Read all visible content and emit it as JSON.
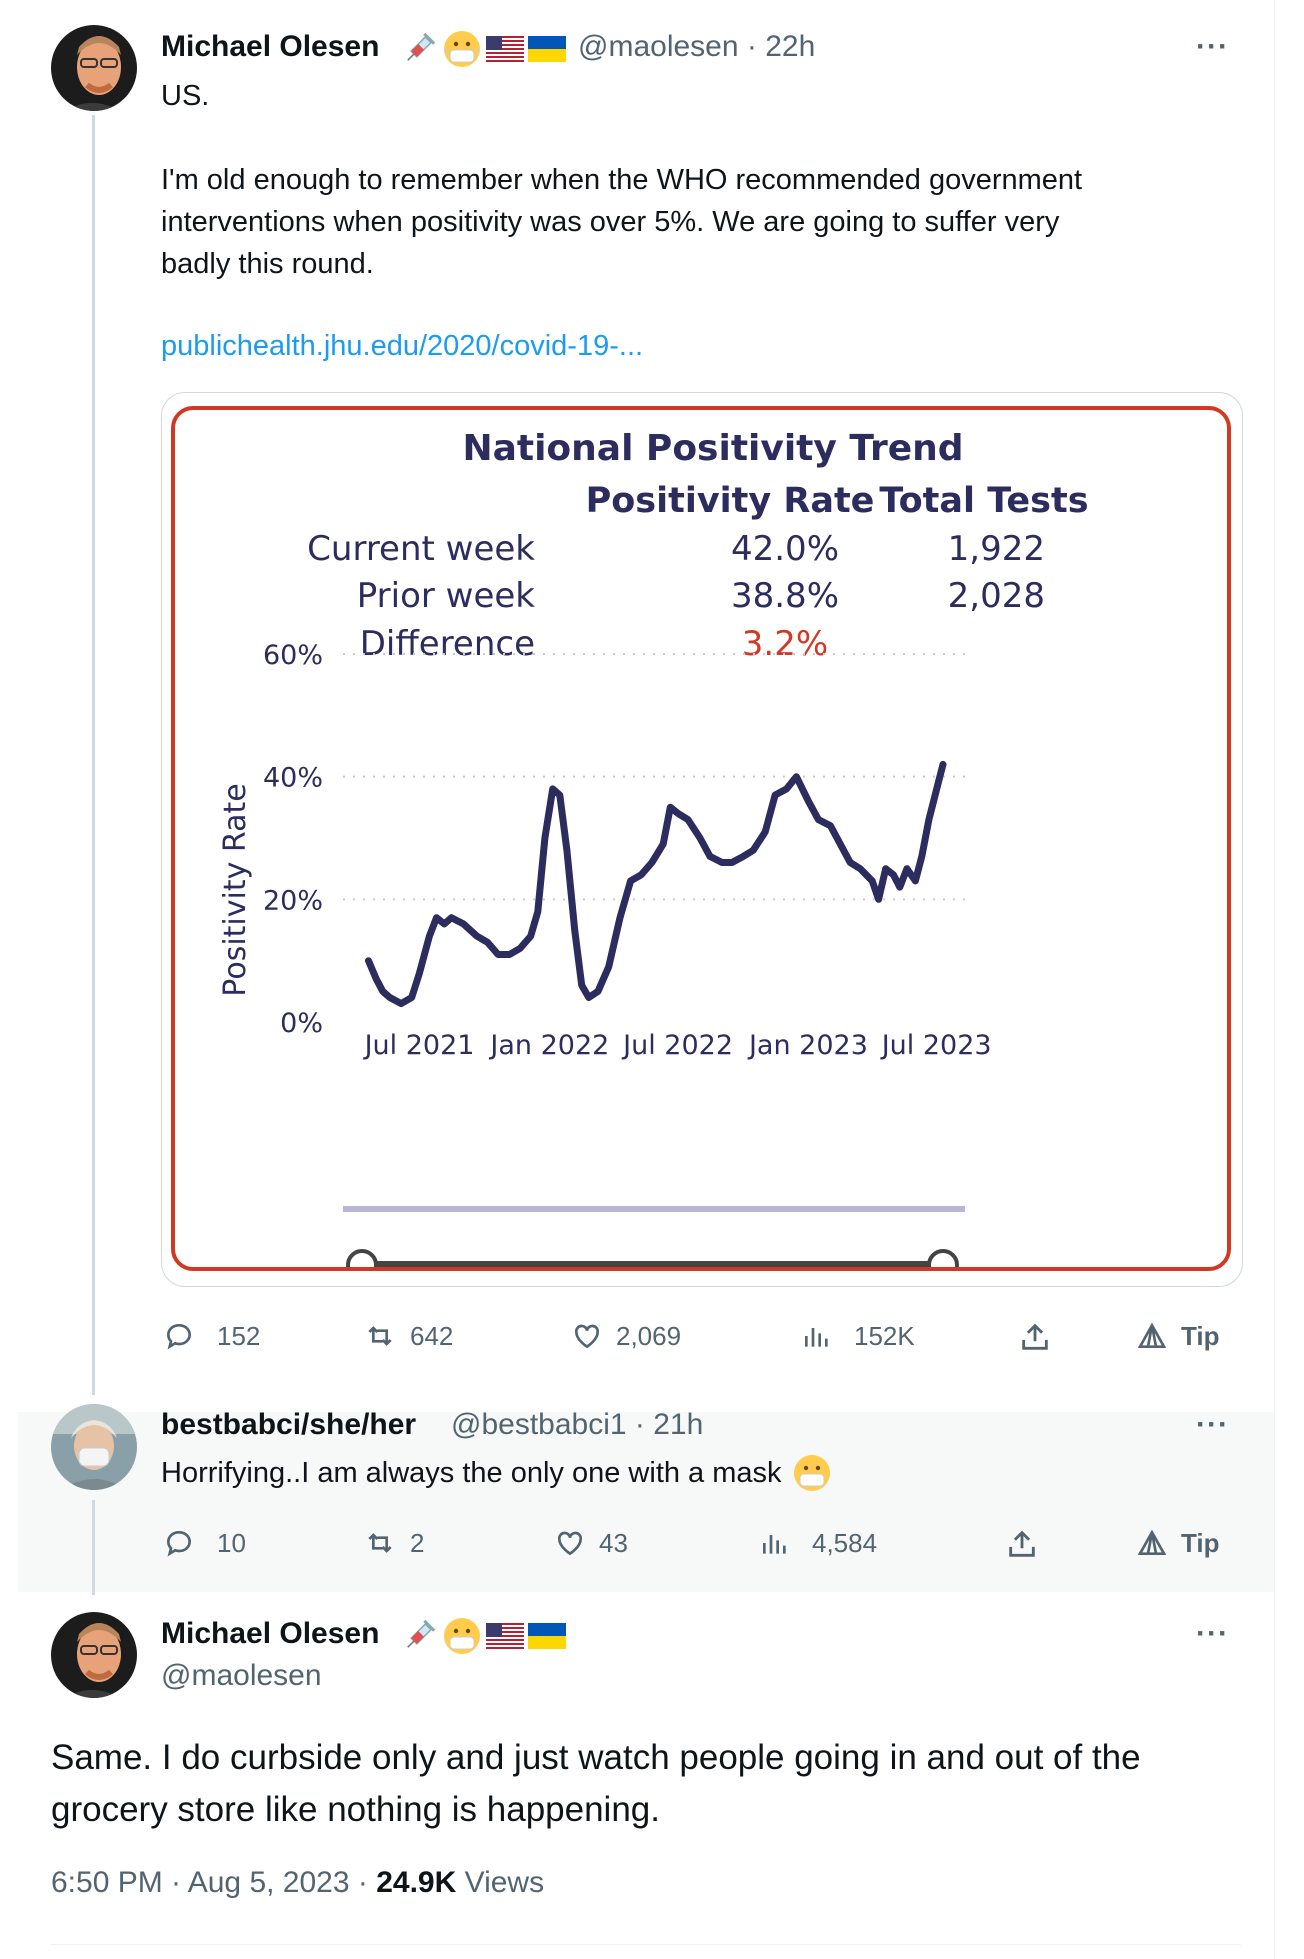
{
  "tweet1": {
    "name": "Michael Olesen",
    "handle": "@maolesen",
    "time": "· 22h",
    "more": "···",
    "text_lines": [
      "US.",
      "",
      "I'm old enough to remember when the WHO recommended government",
      "interventions when positivity was over 5%. We are going to suffer very",
      "badly this round."
    ],
    "link": "publichealth.jhu.edu/2020/covid-19-...",
    "actions": {
      "replies": "152",
      "retweets": "642",
      "likes": "2,069",
      "views": "152K",
      "tip": "Tip"
    }
  },
  "chart_card": {
    "title": "National Positivity Trend",
    "col_rate": "Positivity Rate",
    "col_tests": "Total Tests",
    "rows": [
      {
        "label": "Current week",
        "rate": "42.0%",
        "tests": "1,922"
      },
      {
        "label": "Prior week",
        "rate": "38.8%",
        "tests": "2,028"
      },
      {
        "label": "Difference",
        "rate": "3.2%",
        "tests": ""
      }
    ],
    "difference_color": "#d03a25"
  },
  "chart_data": {
    "type": "line",
    "title": "National Positivity Trend",
    "ylabel": "Positivity Rate",
    "xlabel": "",
    "ylim": [
      0,
      60
    ],
    "yticks": [
      "0%",
      "20%",
      "40%",
      "60%"
    ],
    "xticks": [
      "Jul 2021",
      "Jan 2022",
      "Jul 2022",
      "Jan 2023",
      "Jul 2023"
    ],
    "grid": "dotted horizontal",
    "line_color": "#2c2c5e",
    "series": [
      {
        "values": [
          [
            "2021-04-20",
            10
          ],
          [
            "2021-05-01",
            7
          ],
          [
            "2021-05-10",
            5
          ],
          [
            "2021-05-20",
            4
          ],
          [
            "2021-06-05",
            3
          ],
          [
            "2021-06-20",
            4
          ],
          [
            "2021-07-01",
            8
          ],
          [
            "2021-07-15",
            14
          ],
          [
            "2021-07-25",
            17
          ],
          [
            "2021-08-05",
            16
          ],
          [
            "2021-08-15",
            17
          ],
          [
            "2021-09-01",
            16
          ],
          [
            "2021-09-20",
            14
          ],
          [
            "2021-10-05",
            13
          ],
          [
            "2021-10-20",
            11
          ],
          [
            "2021-11-05",
            11
          ],
          [
            "2021-11-20",
            12
          ],
          [
            "2021-12-05",
            14
          ],
          [
            "2021-12-15",
            18
          ],
          [
            "2021-12-25",
            30
          ],
          [
            "2022-01-05",
            38
          ],
          [
            "2022-01-15",
            37
          ],
          [
            "2022-01-25",
            28
          ],
          [
            "2022-02-05",
            15
          ],
          [
            "2022-02-15",
            6
          ],
          [
            "2022-02-25",
            4
          ],
          [
            "2022-03-10",
            5
          ],
          [
            "2022-03-25",
            9
          ],
          [
            "2022-04-10",
            17
          ],
          [
            "2022-04-25",
            23
          ],
          [
            "2022-05-10",
            24
          ],
          [
            "2022-05-25",
            26
          ],
          [
            "2022-06-10",
            29
          ],
          [
            "2022-06-20",
            35
          ],
          [
            "2022-07-01",
            34
          ],
          [
            "2022-07-15",
            33
          ],
          [
            "2022-08-01",
            30
          ],
          [
            "2022-08-15",
            27
          ],
          [
            "2022-09-01",
            26
          ],
          [
            "2022-09-15",
            26
          ],
          [
            "2022-10-01",
            27
          ],
          [
            "2022-10-15",
            28
          ],
          [
            "2022-11-01",
            31
          ],
          [
            "2022-11-15",
            37
          ],
          [
            "2022-12-01",
            38
          ],
          [
            "2022-12-15",
            40
          ],
          [
            "2023-01-01",
            36
          ],
          [
            "2023-01-15",
            33
          ],
          [
            "2023-02-01",
            32
          ],
          [
            "2023-02-15",
            29
          ],
          [
            "2023-03-01",
            26
          ],
          [
            "2023-03-15",
            25
          ],
          [
            "2023-04-01",
            23
          ],
          [
            "2023-04-10",
            20
          ],
          [
            "2023-04-20",
            25
          ],
          [
            "2023-05-01",
            24
          ],
          [
            "2023-05-10",
            22
          ],
          [
            "2023-05-20",
            25
          ],
          [
            "2023-06-01",
            23
          ],
          [
            "2023-06-10",
            27
          ],
          [
            "2023-06-20",
            33
          ],
          [
            "2023-07-01",
            38
          ],
          [
            "2023-07-10",
            42
          ]
        ]
      }
    ]
  },
  "reply": {
    "name": "bestbabci/she/her",
    "handle": "@bestbabci1",
    "time": "· 21h",
    "more": "···",
    "text": "Horrifying..I am always the only one with a mask",
    "actions": {
      "replies": "10",
      "retweets": "2",
      "likes": "43",
      "views": "4,584",
      "tip": "Tip"
    }
  },
  "main": {
    "name": "Michael Olesen",
    "handle": "@maolesen",
    "more": "···",
    "text": "Same. I do curbside only and just watch people going in and out of the grocery store like nothing is happening.",
    "time": "6:50 PM · Aug 5, 2023 · ",
    "views_count": "24.9K",
    "views_label": " Views"
  },
  "icons": [
    "syringe-icon",
    "mask-emoji-icon",
    "us-flag-icon",
    "ukraine-flag-icon"
  ]
}
